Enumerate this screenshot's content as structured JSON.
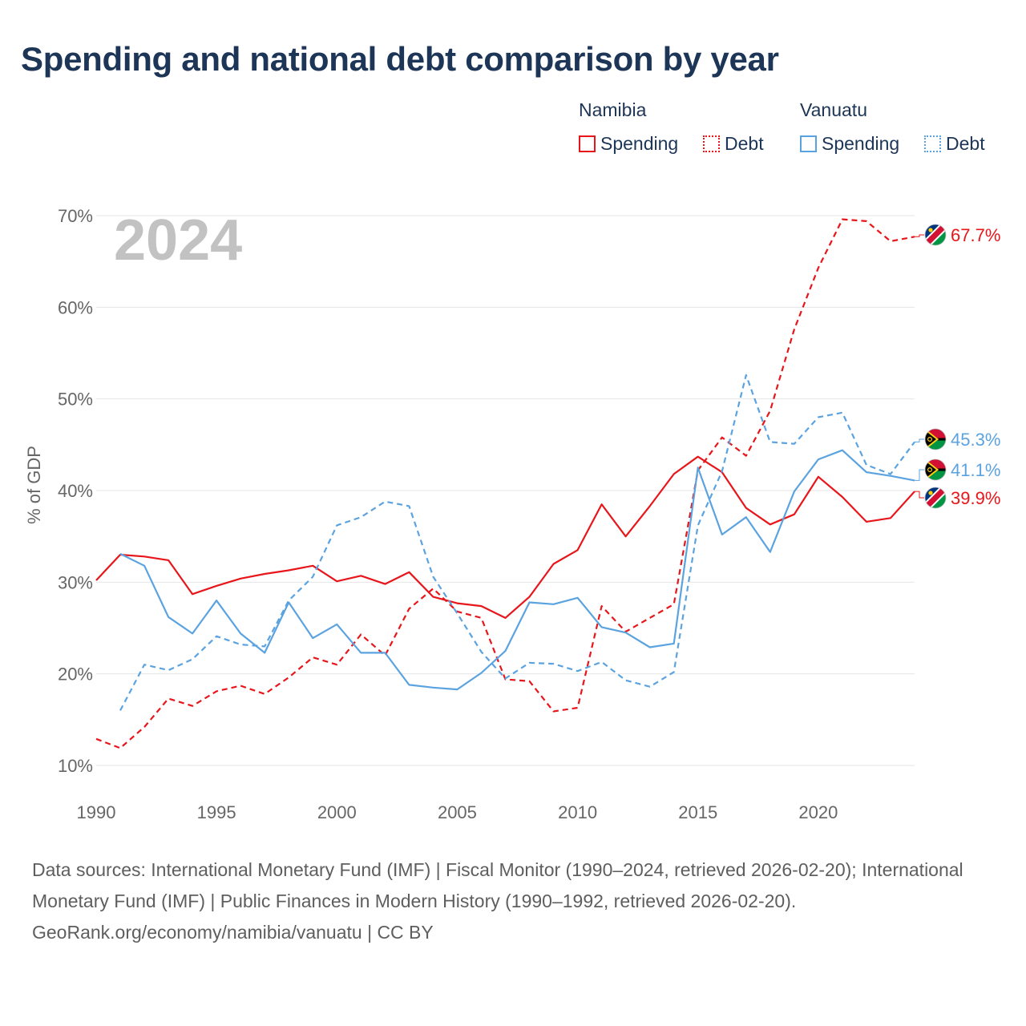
{
  "title": "Spending and national debt comparison by year",
  "legend": {
    "groups": [
      {
        "country": "Namibia",
        "items": [
          {
            "label": "Spending",
            "style": "solid",
            "color": "#e8161b"
          },
          {
            "label": "Debt",
            "style": "dashed",
            "color": "#e8161b"
          }
        ]
      },
      {
        "country": "Vanuatu",
        "items": [
          {
            "label": "Spending",
            "style": "solid",
            "color": "#5ba3e0"
          },
          {
            "label": "Debt",
            "style": "dashed",
            "color": "#5ba3e0"
          }
        ]
      }
    ]
  },
  "chart_data": {
    "type": "line",
    "ylabel": "% of GDP",
    "year_label": "2024",
    "xlim": [
      1990,
      2024
    ],
    "ylim": [
      10,
      70
    ],
    "x_ticks": [
      1990,
      1995,
      2000,
      2005,
      2010,
      2015,
      2020
    ],
    "y_ticks": [
      10,
      20,
      30,
      40,
      50,
      60,
      70
    ],
    "y_tick_labels": [
      "10%",
      "20%",
      "30%",
      "40%",
      "50%",
      "60%",
      "70%"
    ],
    "series": [
      {
        "name": "Namibia Spending",
        "country": "Namibia",
        "color": "#e8161b",
        "dash": false,
        "start_year": 1990,
        "end_label": "39.9%",
        "values": [
          30.2,
          33.0,
          32.8,
          32.4,
          28.7,
          29.6,
          30.4,
          30.9,
          31.3,
          31.8,
          30.1,
          30.7,
          29.8,
          31.1,
          28.4,
          27.7,
          27.4,
          26.1,
          28.4,
          32.0,
          33.5,
          38.5,
          35.0,
          38.3,
          41.8,
          43.7,
          42.0,
          38.1,
          36.3,
          37.4,
          41.5,
          39.3,
          36.6,
          37.0,
          39.9
        ]
      },
      {
        "name": "Namibia Debt",
        "country": "Namibia",
        "color": "#e8161b",
        "dash": true,
        "start_year": 1990,
        "end_label": "67.7%",
        "values": [
          12.9,
          11.9,
          14.2,
          17.3,
          16.5,
          18.1,
          18.7,
          17.8,
          19.6,
          21.8,
          21.0,
          24.3,
          22.0,
          27.1,
          29.3,
          26.8,
          26.1,
          19.4,
          19.2,
          15.9,
          16.3,
          27.4,
          24.6,
          26.1,
          27.6,
          42.2,
          45.8,
          43.8,
          48.7,
          57.6,
          64.3,
          69.6,
          69.4,
          67.2,
          67.7
        ]
      },
      {
        "name": "Vanuatu Spending",
        "country": "Vanuatu",
        "color": "#5ba3e0",
        "dash": false,
        "start_year": 1991,
        "end_label": "41.1%",
        "values": [
          33.1,
          31.8,
          26.2,
          24.4,
          28.0,
          24.4,
          22.3,
          27.8,
          23.9,
          25.4,
          22.3,
          22.3,
          18.8,
          18.5,
          18.3,
          20.1,
          22.5,
          27.8,
          27.6,
          28.3,
          25.1,
          24.5,
          22.9,
          23.3,
          42.5,
          35.2,
          37.1,
          33.3,
          39.9,
          43.4,
          44.4,
          42.0,
          41.6,
          41.1
        ]
      },
      {
        "name": "Vanuatu Debt",
        "country": "Vanuatu",
        "color": "#5ba3e0",
        "dash": true,
        "start_year": 1991,
        "end_label": "45.3%",
        "values": [
          16.0,
          21.0,
          20.4,
          21.6,
          24.1,
          23.2,
          23.0,
          28.0,
          30.6,
          36.2,
          37.1,
          38.8,
          38.3,
          30.6,
          26.6,
          22.4,
          19.5,
          21.2,
          21.1,
          20.3,
          21.3,
          19.3,
          18.6,
          20.2,
          36.2,
          42.1,
          52.6,
          45.3,
          45.1,
          48.0,
          48.5,
          42.8,
          41.8,
          45.3
        ]
      }
    ]
  },
  "footer": {
    "sources": "Data sources: International Monetary Fund (IMF) | Fiscal Monitor (1990–2024, retrieved 2026-02-20); International Monetary Fund (IMF) | Public Finances in Modern History (1990–1992, retrieved 2026-02-20).",
    "credit": "GeoRank.org/economy/namibia/vanuatu | CC BY"
  }
}
